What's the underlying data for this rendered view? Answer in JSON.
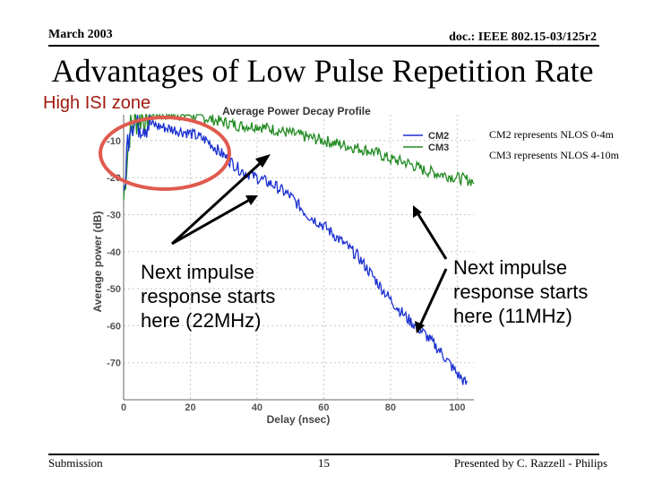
{
  "header": {
    "date": "March 2003",
    "doc": "doc.: IEEE 802.15-03/125r2"
  },
  "slide_title": "Advantages of Low Pulse Repetition Rate",
  "isi_label": "High ISI zone",
  "notes": {
    "cm2": "CM2 represents NLOS 0-4m",
    "cm3": "CM3 represents NLOS 4-10m"
  },
  "callouts": {
    "left": "Next impulse response starts here (22MHz)",
    "right": "Next impulse response starts here (11MHz)"
  },
  "footer": {
    "left": "Submission",
    "page": "15",
    "right": "Presented by C. Razzell - Philips"
  },
  "colors": {
    "cm2": "#1a2fd0",
    "cm3": "#228b22",
    "ellipse": "#e05a4e",
    "axis": "#666666"
  },
  "chart_data": {
    "type": "line",
    "title": "Average Power Decay Profile",
    "xlabel": "Delay (nsec)",
    "ylabel": "Average power (dB)",
    "xlim": [
      0,
      105
    ],
    "ylim": [
      -80,
      -3
    ],
    "xticks": [
      0,
      20,
      40,
      60,
      80,
      100
    ],
    "yticks": [
      -10,
      -20,
      -30,
      -40,
      -50,
      -60,
      -70
    ],
    "legend_position": "top-right",
    "series": [
      {
        "name": "CM2",
        "x": [
          0,
          1,
          2,
          4,
          6,
          10,
          15,
          20,
          25,
          30,
          35,
          40,
          45,
          50,
          55,
          60,
          65,
          70,
          75,
          80,
          85,
          90,
          95,
          100,
          103
        ],
        "y": [
          -28,
          -12,
          -4,
          -5,
          -5,
          -6,
          -7,
          -8,
          -10,
          -14,
          -18,
          -20,
          -22,
          -25,
          -30,
          -33,
          -37,
          -41,
          -47,
          -53,
          -58,
          -62,
          -67,
          -73,
          -76
        ]
      },
      {
        "name": "CM3",
        "x": [
          0,
          1,
          2,
          4,
          6,
          10,
          15,
          20,
          25,
          30,
          35,
          40,
          45,
          50,
          55,
          60,
          65,
          70,
          75,
          80,
          85,
          90,
          95,
          100,
          105
        ],
        "y": [
          -26,
          -15,
          -6,
          -4,
          -3,
          -3,
          -3,
          -3,
          -4,
          -5,
          -6,
          -6,
          -7,
          -8,
          -9,
          -10,
          -11,
          -12,
          -13,
          -15,
          -16,
          -18,
          -19,
          -20,
          -21
        ]
      }
    ]
  }
}
